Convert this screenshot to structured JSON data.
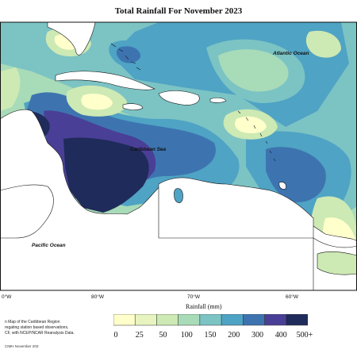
{
  "title": "Total Rainfall For November 2023",
  "ocean_labels": {
    "atlantic": "Atlantic Ocean",
    "caribbean": "Caribbean Sea",
    "pacific": "Pacific Ocean"
  },
  "longitude_labels": [
    "0°W",
    "80°W",
    "70°W",
    "60°W"
  ],
  "colorbar": {
    "title": "Rainfall (mm)",
    "ticks": [
      "0",
      "25",
      "50",
      "100",
      "150",
      "200",
      "300",
      "400",
      "500+"
    ],
    "colors": [
      "#ffffcc",
      "#e8f4c0",
      "#cde9b4",
      "#a8dbb8",
      "#7cc3c4",
      "#4fa3c4",
      "#3d74b0",
      "#4a3f96",
      "#1f2b5a"
    ]
  },
  "description_lines": [
    "n Map of the Caribbean Region",
    "regating station based observations,",
    "CF, with NCEP/NCAR Reanalysis Data."
  ],
  "credit": "CIMH November 202:"
}
